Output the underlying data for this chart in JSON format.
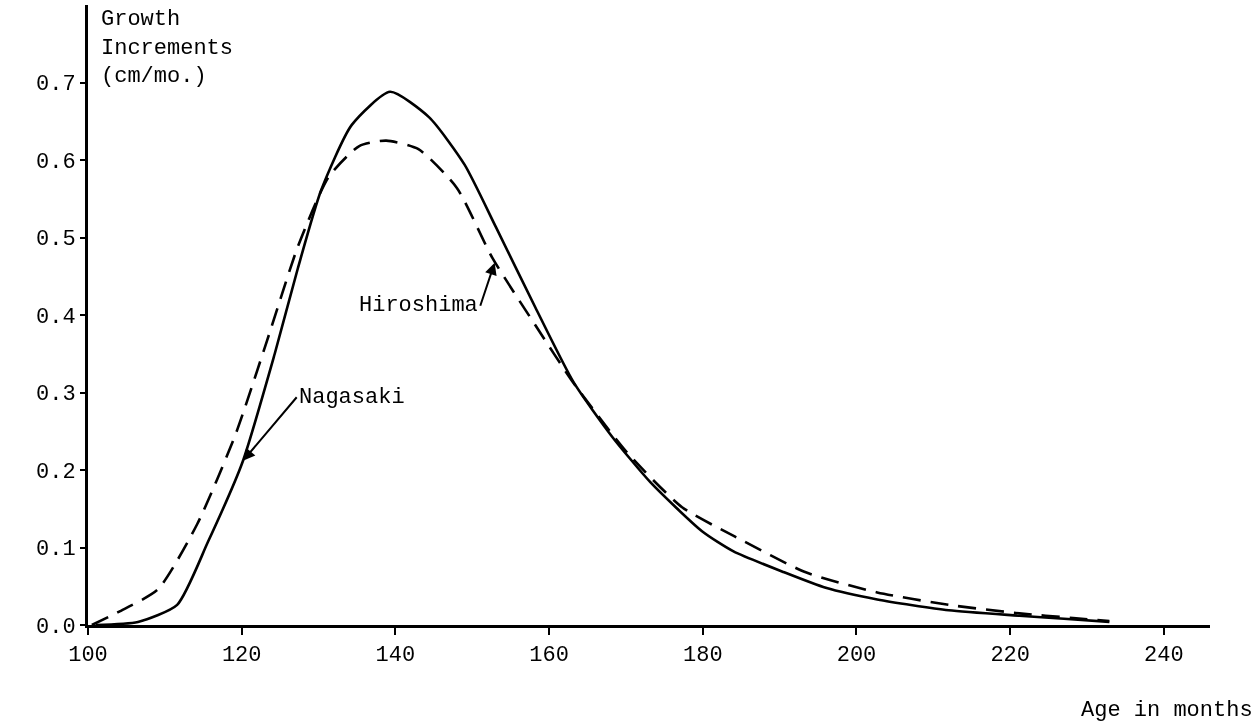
{
  "chart_data": {
    "type": "line",
    "xlabel": "Age in months",
    "ylabel": "Growth\nIncrements\n(cm/mo.)",
    "xlim": [
      100,
      246
    ],
    "ylim": [
      0,
      0.8
    ],
    "xticks": [
      100,
      120,
      140,
      160,
      180,
      200,
      220,
      240
    ],
    "yticks": [
      {
        "value": 0,
        "label": "0.0"
      },
      0.1,
      0.2,
      0.3,
      0.4,
      0.5,
      0.6,
      0.7
    ],
    "grid": false,
    "marker": "none",
    "series": [
      {
        "color": "#000000",
        "line_style": "solid",
        "x": [
          101,
          106.5,
          111.6,
          115.6,
          120.1,
          124.3,
          127.3,
          130.3,
          134.3,
          139.3,
          144.4,
          149,
          153.1,
          158.2,
          163.2,
          168.2,
          173.2,
          179.9,
          184,
          190.6,
          196,
          202.7,
          212,
          221.2,
          227,
          232.9
        ],
        "values": [
          0,
          0.004,
          0.026,
          0.107,
          0.21,
          0.35,
          0.46,
          0.56,
          0.645,
          0.688,
          0.655,
          0.594,
          0.513,
          0.41,
          0.313,
          0.243,
          0.184,
          0.121,
          0.095,
          0.068,
          0.048,
          0.033,
          0.019,
          0.012,
          0.008,
          0.004
        ]
      },
      {
        "color": "#000000",
        "line_style": "dashed",
        "x": [
          100.5,
          104,
          109.1,
          114.2,
          119.2,
          123.3,
          127.3,
          131.3,
          135.3,
          138.8,
          143,
          148,
          152.6,
          158.2,
          163.2,
          170.2,
          177.3,
          184.2,
          193.4,
          202.7,
          212,
          221.2,
          228.2,
          232.9
        ],
        "values": [
          0,
          0.017,
          0.046,
          0.13,
          0.246,
          0.367,
          0.488,
          0.578,
          0.618,
          0.625,
          0.614,
          0.564,
          0.474,
          0.387,
          0.312,
          0.222,
          0.152,
          0.114,
          0.068,
          0.042,
          0.026,
          0.015,
          0.009,
          0.005
        ]
      }
    ],
    "annotations": [
      {
        "text": "Nagasaki",
        "x": 120,
        "y": 0.21
      },
      {
        "text": "Hiroshima",
        "x": 153,
        "y": 0.47
      }
    ]
  }
}
